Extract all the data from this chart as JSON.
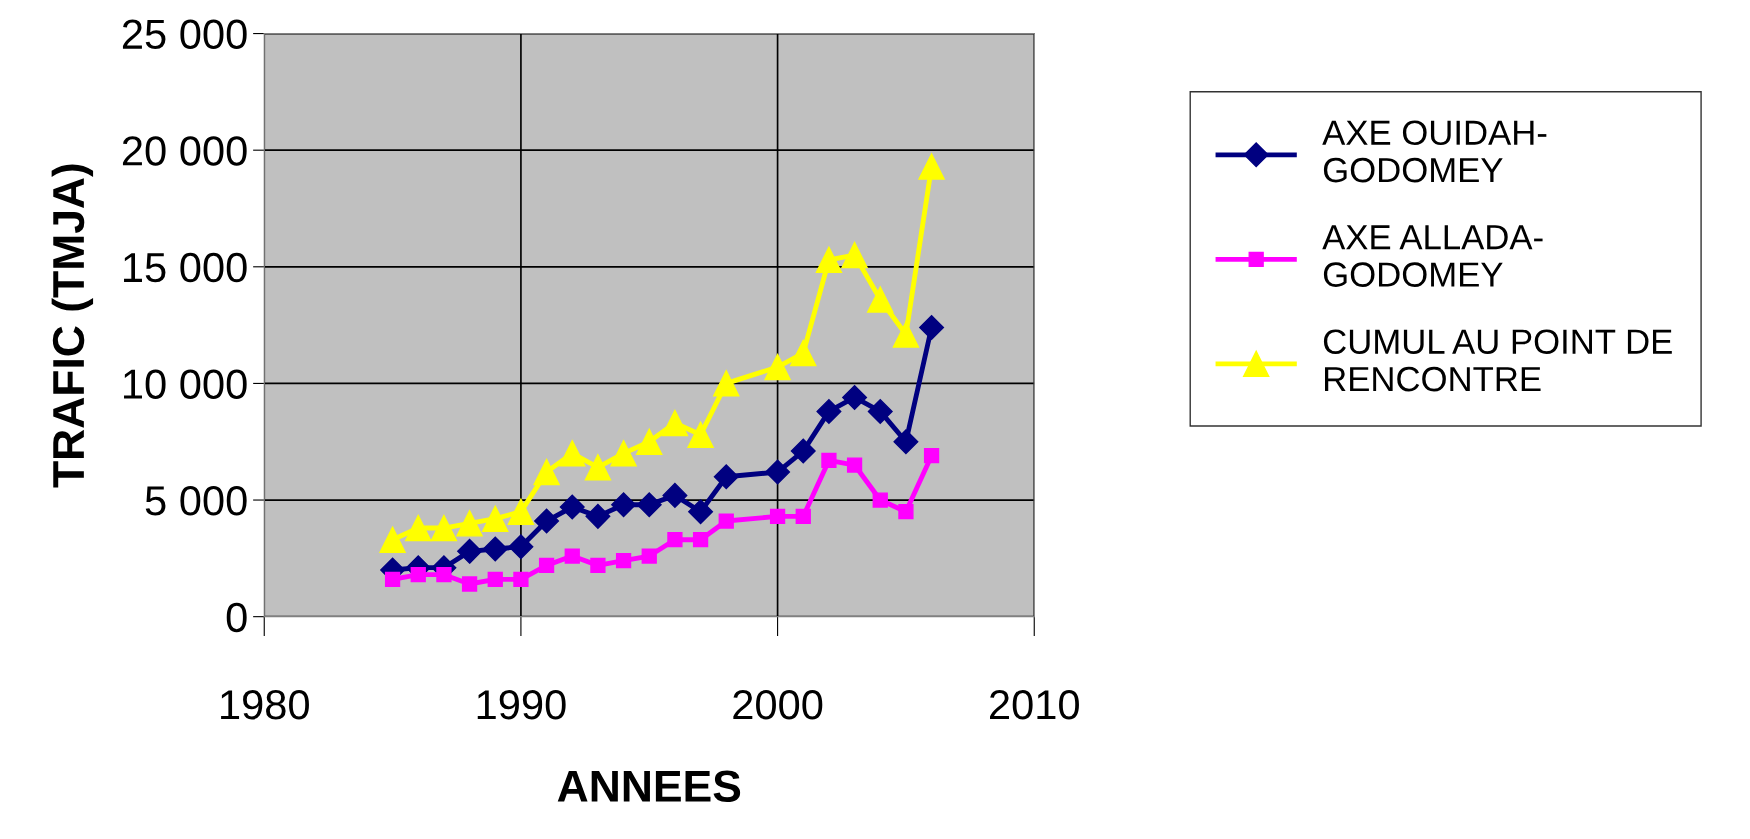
{
  "chart_data": {
    "type": "line",
    "xlabel": "ANNEES",
    "ylabel": "TRAFIC (TMJA)",
    "x": [
      1985,
      1986,
      1987,
      1988,
      1989,
      1990,
      1991,
      1992,
      1993,
      1994,
      1995,
      1996,
      1997,
      1998,
      2000,
      2001,
      2002,
      2003,
      2004,
      2005,
      2006
    ],
    "series": [
      {
        "name": "AXE OUIDAH-\nGODOMEY",
        "color": "#000080",
        "marker": "diamond",
        "values": [
          2000,
          2100,
          2100,
          2800,
          2900,
          3000,
          4100,
          4700,
          4300,
          4800,
          4800,
          5200,
          4500,
          6000,
          6200,
          7100,
          8800,
          9400,
          8800,
          7500,
          12400
        ]
      },
      {
        "name": "AXE ALLADA-\nGODOMEY",
        "color": "#ff00ff",
        "marker": "square",
        "values": [
          1600,
          1800,
          1800,
          1400,
          1600,
          1600,
          2200,
          2600,
          2200,
          2400,
          2600,
          3300,
          3300,
          4100,
          4300,
          4300,
          6700,
          6500,
          5000,
          4500,
          6900
        ]
      },
      {
        "name": "CUMUL AU POINT DE\nRENCONTRE",
        "color": "#ffff00",
        "marker": "triangle",
        "values": [
          3300,
          3800,
          3800,
          4000,
          4200,
          4500,
          6200,
          7000,
          6400,
          7000,
          7500,
          8300,
          7800,
          10000,
          10700,
          11300,
          15300,
          15500,
          13600,
          12100,
          19300
        ]
      }
    ],
    "xlim": [
      1980,
      2010
    ],
    "xticks": [
      1980,
      1990,
      2000,
      2010
    ],
    "ylim": [
      0,
      25000
    ],
    "yticks": [
      {
        "value": 0,
        "label": "0"
      },
      {
        "value": 5000,
        "label": "5 000"
      },
      {
        "value": 10000,
        "label": "10 000"
      },
      {
        "value": 15000,
        "label": "15 000"
      },
      {
        "value": 20000,
        "label": "20 000"
      },
      {
        "value": 25000,
        "label": "25 000"
      }
    ],
    "grid": true,
    "legend": "right",
    "line_style": "solid"
  }
}
